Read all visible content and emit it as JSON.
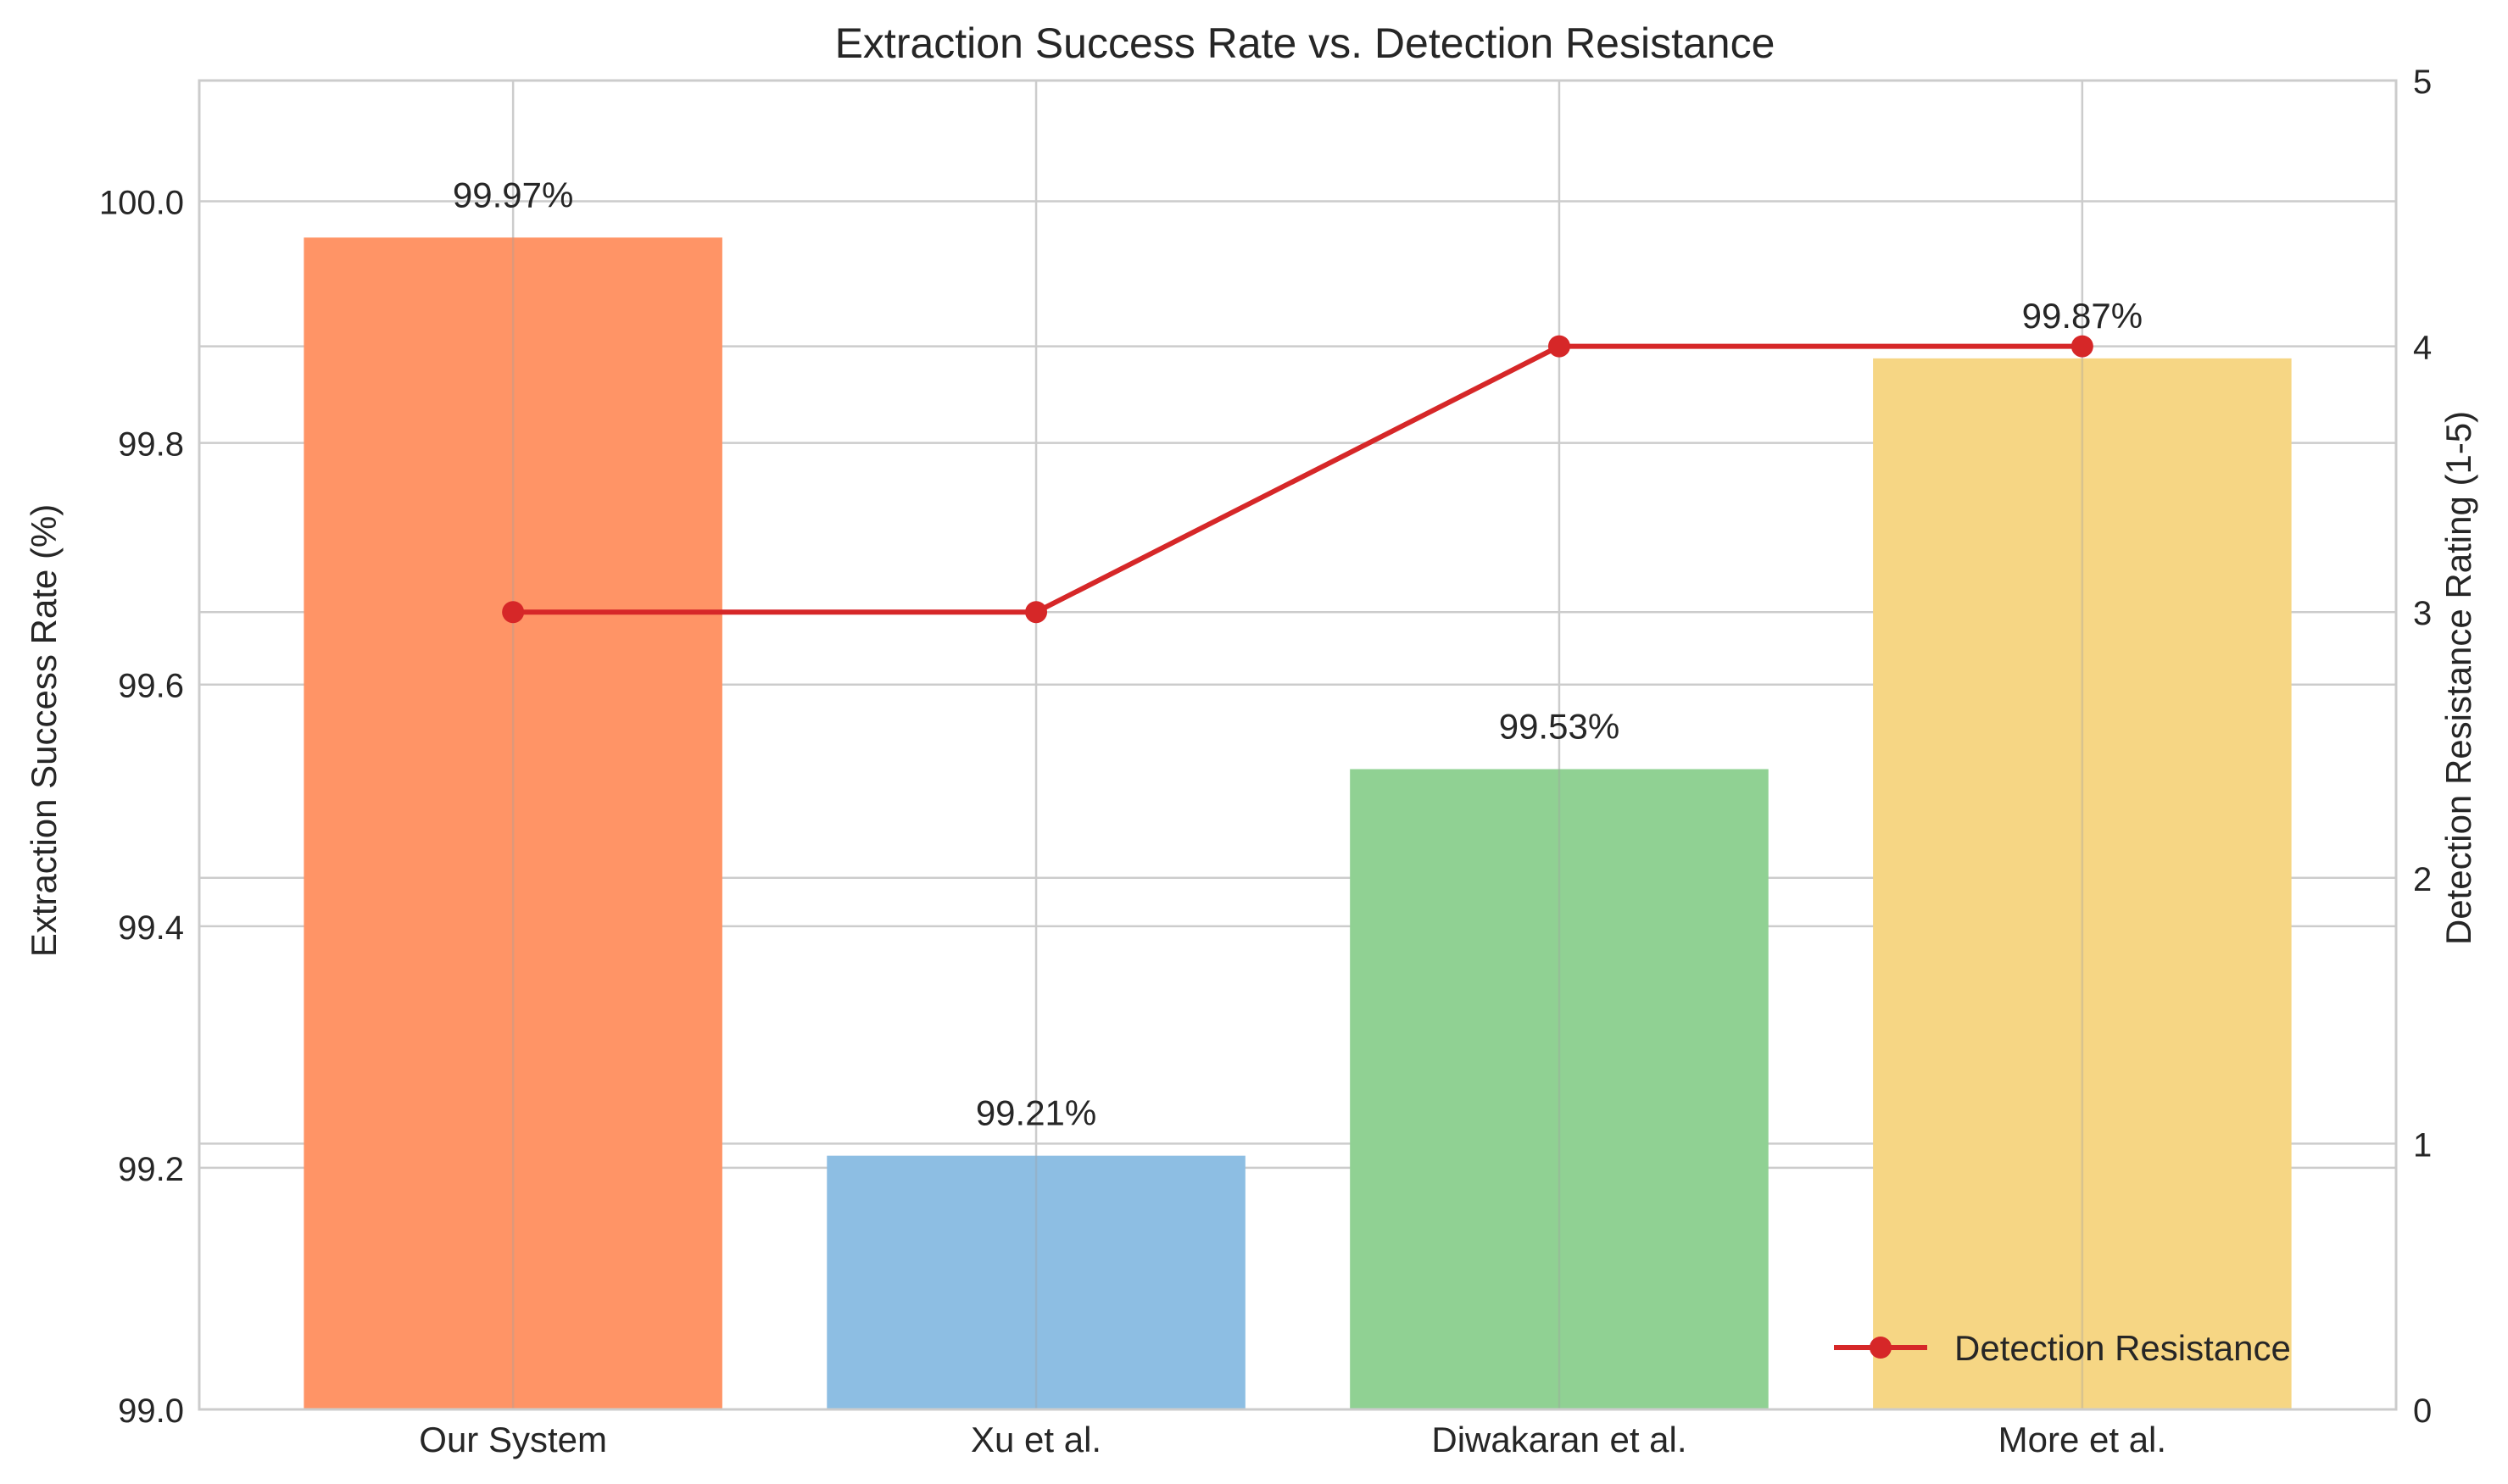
{
  "chart_data": {
    "type": "bar",
    "title": "Extraction Success Rate vs. Detection Resistance",
    "categories": [
      "Our System",
      "Xu et al.",
      "Diwakaran et al.",
      "More et al."
    ],
    "ylabel_left": "Extraction Success Rate (%)",
    "ylabel_right": "Detection Resistance Rating (1-5)",
    "ylim_left": [
      99.0,
      100.1
    ],
    "ylim_right": [
      0,
      5
    ],
    "yticks_left": [
      "99.0",
      "99.2",
      "99.4",
      "99.6",
      "99.8",
      "100.0"
    ],
    "yticks_right": [
      "0",
      "1",
      "2",
      "3",
      "4",
      "5"
    ],
    "bar_series": {
      "values": [
        99.97,
        99.21,
        99.53,
        99.87
      ],
      "labels": [
        "99.97%",
        "99.21%",
        "99.53%",
        "99.87%"
      ],
      "colors": [
        "#ff9466",
        "#8dbee3",
        "#90d193",
        "#f6d684"
      ]
    },
    "line_series": {
      "name": "Detection Resistance",
      "values": [
        3,
        3,
        4,
        4
      ],
      "color": "#d62728"
    },
    "legend": {
      "position": "bottom-right"
    },
    "grid": true
  }
}
